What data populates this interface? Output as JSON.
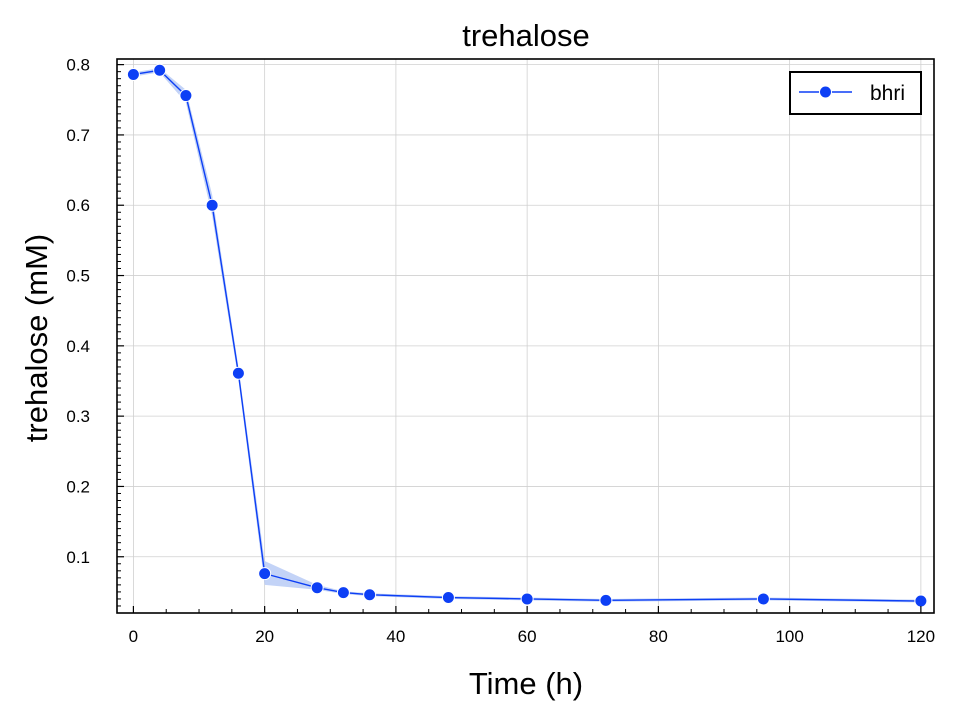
{
  "chart_data": {
    "type": "line",
    "title": "trehalose",
    "xlabel": "Time (h)",
    "ylabel": "trehalose (mM)",
    "xlim": [
      -2.5,
      122
    ],
    "ylim": [
      0.02,
      0.808
    ],
    "xticks": [
      0,
      20,
      40,
      60,
      80,
      100,
      120
    ],
    "yticks": [
      0.1,
      0.2,
      0.3,
      0.4,
      0.5,
      0.6,
      0.7,
      0.8
    ],
    "xtick_labels": [
      "0",
      "20",
      "40",
      "60",
      "80",
      "100",
      "120"
    ],
    "ytick_labels": [
      "0.1",
      "0.2",
      "0.3",
      "0.4",
      "0.5",
      "0.6",
      "0.7",
      "0.8"
    ],
    "grid": true,
    "legend_position": "top-right",
    "series": [
      {
        "name": "bhri",
        "color": "#0d3ff5",
        "band_color": "#a9c0f3",
        "x": [
          0,
          4,
          8,
          12,
          16,
          20,
          28,
          32,
          36,
          48,
          60,
          72,
          96,
          120
        ],
        "y": [
          0.786,
          0.792,
          0.756,
          0.6,
          0.361,
          0.076,
          0.056,
          0.049,
          0.046,
          0.042,
          0.04,
          0.038,
          0.04,
          0.037
        ],
        "lower": [
          0.783,
          0.789,
          0.746,
          0.585,
          0.352,
          0.06,
          0.053,
          0.047,
          0.044,
          0.04,
          0.038,
          0.036,
          0.038,
          0.035
        ],
        "upper": [
          0.789,
          0.795,
          0.764,
          0.615,
          0.37,
          0.094,
          0.06,
          0.051,
          0.048,
          0.044,
          0.042,
          0.04,
          0.042,
          0.039
        ]
      }
    ]
  }
}
